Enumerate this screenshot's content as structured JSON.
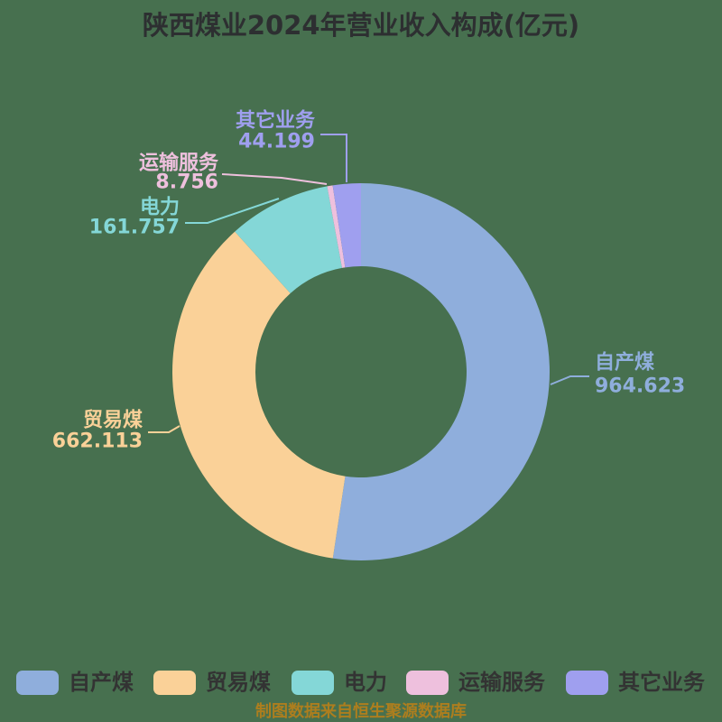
{
  "title": "陕西煤业2024年营业收入构成(亿元)",
  "footer": "制图数据来自恒生聚源数据库",
  "colors": {
    "background": "#47704F",
    "title_text": "#2D2F31",
    "legend_text": "#333333",
    "footer_text": "#AD7E1E"
  },
  "chart_data": {
    "type": "pie",
    "title": "陕西煤业2024年营业收入构成(亿元)",
    "unit": "亿元",
    "donut": true,
    "start_angle_deg_clockwise_from_top": 0,
    "legend_position": "bottom",
    "categories": [
      "自产煤",
      "贸易煤",
      "电力",
      "运输服务",
      "其它业务"
    ],
    "values": [
      964.623,
      662.113,
      161.757,
      8.756,
      44.199
    ],
    "value_labels": [
      "964.623",
      "662.113",
      "161.757",
      "8.756",
      "44.199"
    ],
    "colors": [
      "#8FAEDC",
      "#FAD198",
      "#84D7D7",
      "#EEC0DD",
      "#9F9FEF"
    ],
    "total": 1841.448
  }
}
